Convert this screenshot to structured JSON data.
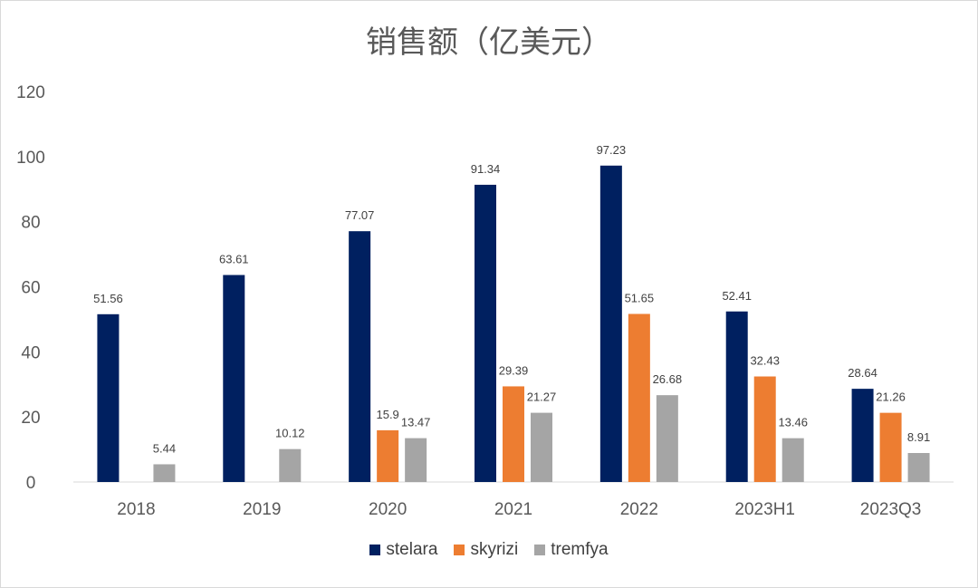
{
  "chart_data": {
    "type": "bar",
    "title": "销售额（亿美元）",
    "categories": [
      "2018",
      "2019",
      "2020",
      "2021",
      "2022",
      "2023H1",
      "2023Q3"
    ],
    "series": [
      {
        "name": "stelara",
        "color": "#002060",
        "values": [
          51.56,
          63.61,
          77.07,
          91.34,
          97.23,
          52.41,
          28.64
        ]
      },
      {
        "name": "skyrizi",
        "color": "#ED7D31",
        "values": [
          null,
          null,
          15.9,
          29.39,
          51.65,
          32.43,
          21.26
        ]
      },
      {
        "name": "tremfya",
        "color": "#A5A5A5",
        "values": [
          5.44,
          10.12,
          13.47,
          21.27,
          26.68,
          13.46,
          8.91
        ]
      }
    ],
    "ylim": [
      0,
      120
    ],
    "yticks": [
      0,
      20,
      40,
      60,
      80,
      100,
      120
    ],
    "grid": false,
    "legend_position": "bottom"
  }
}
